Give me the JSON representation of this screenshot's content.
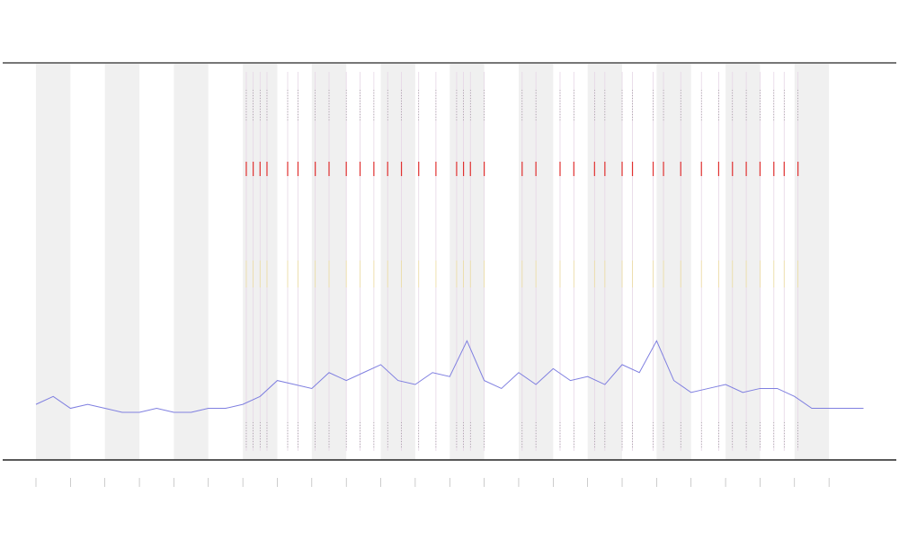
{
  "chart_data": {
    "type": "line",
    "x": [
      0,
      0.5,
      1,
      1.5,
      2,
      2.5,
      3,
      3.5,
      4,
      4.5,
      5,
      5.5,
      6,
      6.5,
      7,
      7.5,
      8,
      8.5,
      9,
      9.5,
      10,
      10.5,
      11,
      11.5,
      12,
      12.5,
      13,
      13.5,
      14,
      14.5,
      15,
      15.5,
      16,
      16.5,
      17,
      17.5,
      18,
      18.5,
      19,
      19.5,
      20,
      20.5,
      21,
      21.5,
      22,
      22.5,
      23,
      23.5,
      24
    ],
    "series": [
      {
        "color": "#7f7fe0",
        "values": [
          14,
          16,
          13,
          14,
          13,
          12,
          12,
          13,
          12,
          12,
          13,
          13,
          14,
          16,
          20,
          19,
          18,
          22,
          20,
          22,
          24,
          20,
          19,
          22,
          21,
          30,
          20,
          18,
          22,
          19,
          23,
          20,
          21,
          19,
          24,
          22,
          30,
          20,
          17,
          18,
          19,
          17,
          18,
          18,
          16,
          13,
          13,
          13,
          13
        ]
      }
    ],
    "xlim": [
      0,
      24
    ],
    "ylim": [
      0,
      100
    ],
    "xticks": [
      0,
      1,
      2,
      3,
      4,
      5,
      6,
      7,
      8,
      9,
      10,
      11,
      12,
      13,
      14,
      15,
      16,
      17,
      18,
      19,
      20,
      21,
      22,
      23
    ],
    "shaded_bands": [
      [
        0,
        1
      ],
      [
        2,
        3
      ],
      [
        4,
        5
      ],
      [
        6,
        7
      ],
      [
        8,
        9
      ],
      [
        10,
        11
      ],
      [
        12,
        13
      ],
      [
        14,
        15
      ],
      [
        16,
        17
      ],
      [
        18,
        19
      ],
      [
        20,
        21
      ],
      [
        22,
        23
      ]
    ],
    "band_color": "#f0f0f0",
    "events": [
      6.1,
      6.3,
      6.5,
      6.7,
      7.3,
      7.6,
      8.1,
      8.5,
      9.0,
      9.4,
      9.8,
      10.2,
      10.6,
      11.1,
      11.6,
      12.2,
      12.4,
      12.6,
      13.0,
      14.1,
      14.5,
      15.2,
      15.6,
      16.2,
      16.5,
      17.0,
      17.3,
      17.9,
      18.2,
      18.7,
      19.3,
      19.8,
      20.2,
      20.6,
      21.0,
      21.4,
      21.7,
      22.1
    ],
    "event_color": "#e03030"
  }
}
